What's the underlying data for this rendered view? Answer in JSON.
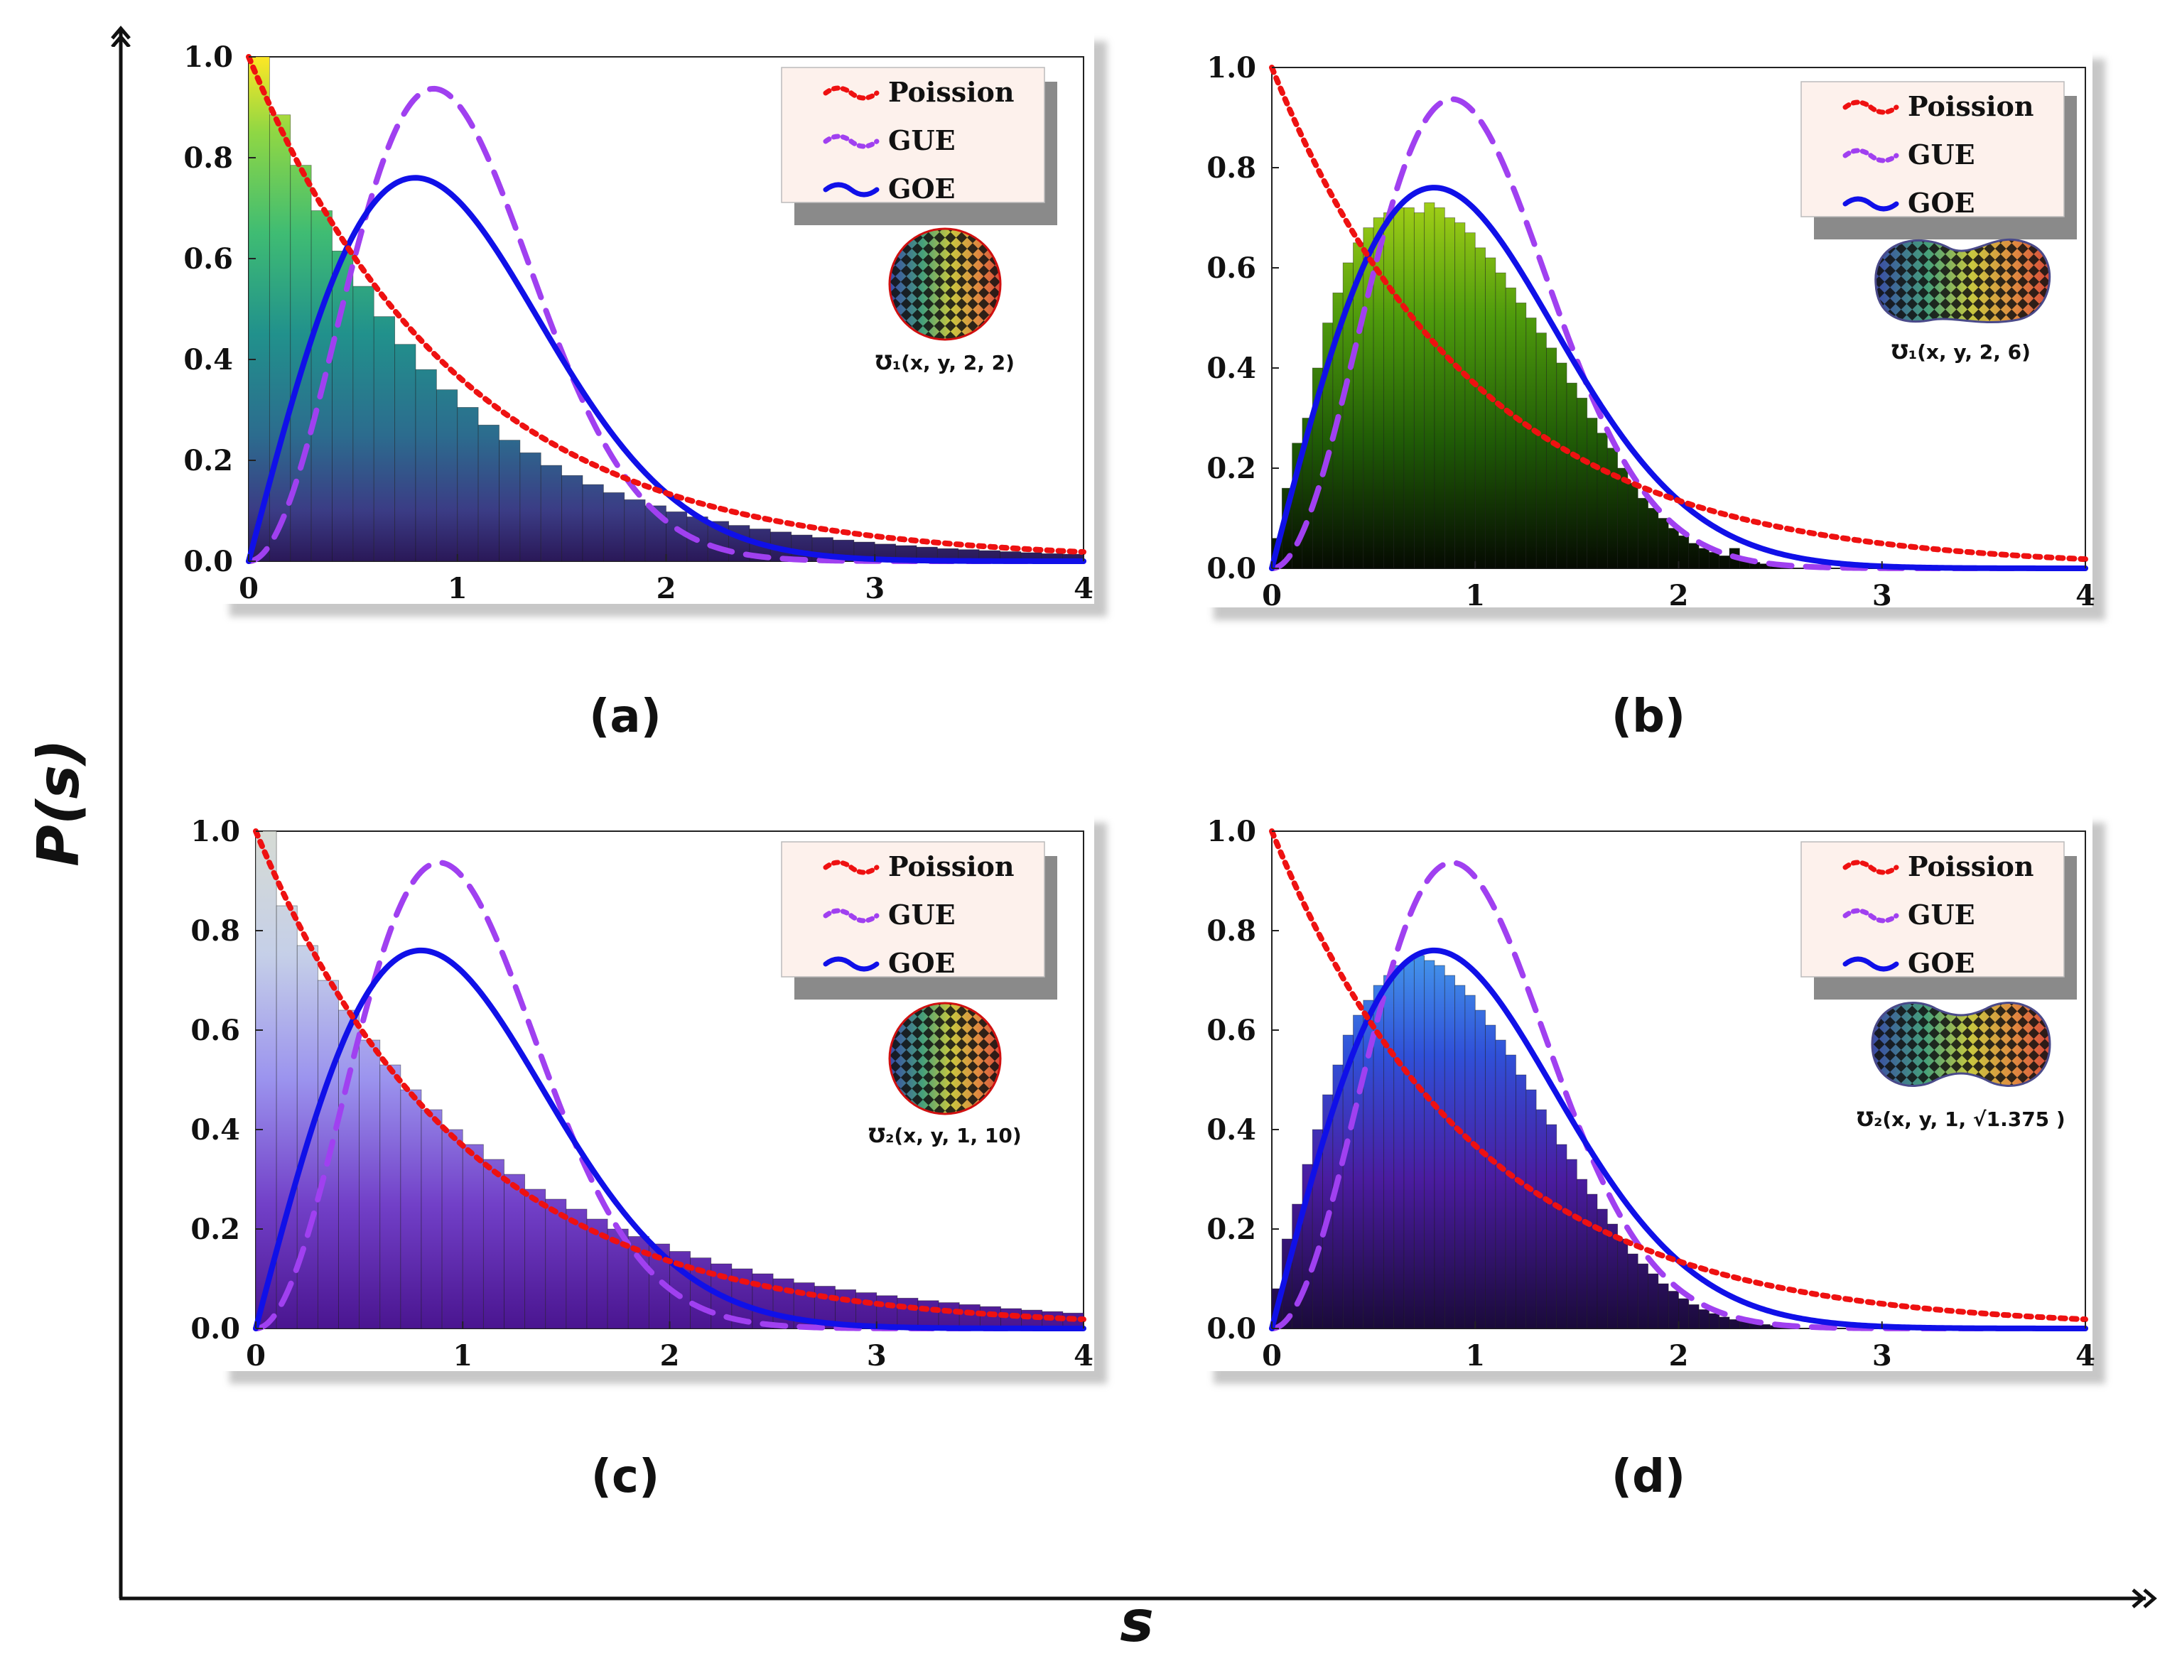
{
  "figure": {
    "ylabel": "P(s)",
    "xlabel": "s",
    "colors": {
      "poisson": "#ee1111",
      "gue": "#a040f0",
      "goe": "#1010e8",
      "legend_bg": "#fdf1ec"
    }
  },
  "chart_data": [
    {
      "type": "bar",
      "panel": "(a)",
      "inset_label": "℧₁(x, y, 2, 2)",
      "inset_shape": "circle",
      "colormap": "viridis",
      "xlim": [
        0,
        4
      ],
      "ylim": [
        0,
        1.0
      ],
      "xticks": [
        "0",
        "1",
        "2",
        "3",
        "4"
      ],
      "yticks": [
        "0.0",
        "0.2",
        "0.4",
        "0.6",
        "0.8",
        "1.0"
      ],
      "legend": [
        "Poission",
        "GUE",
        "GOE"
      ],
      "bin_width": 0.1,
      "histogram": [
        1.0,
        0.885,
        0.785,
        0.695,
        0.615,
        0.545,
        0.485,
        0.43,
        0.38,
        0.34,
        0.305,
        0.27,
        0.24,
        0.215,
        0.19,
        0.17,
        0.152,
        0.136,
        0.122,
        0.11,
        0.098,
        0.088,
        0.079,
        0.071,
        0.064,
        0.058,
        0.052,
        0.047,
        0.042,
        0.038,
        0.034,
        0.031,
        0.028,
        0.025,
        0.023,
        0.021,
        0.019,
        0.017,
        0.015,
        0.014
      ]
    },
    {
      "type": "bar",
      "panel": "(b)",
      "inset_label": "℧₁(x, y, 2, 6)",
      "inset_shape": "bean",
      "colormap": "greenyellow",
      "xlim": [
        0,
        4
      ],
      "ylim": [
        0,
        1.0
      ],
      "xticks": [
        "0",
        "1",
        "2",
        "3",
        "4"
      ],
      "yticks": [
        "0.0",
        "0.2",
        "0.4",
        "0.6",
        "0.8",
        "1.0"
      ],
      "legend": [
        "Poission",
        "GUE",
        "GOE"
      ],
      "bin_width": 0.05,
      "histogram": [
        0.06,
        0.16,
        0.25,
        0.3,
        0.4,
        0.49,
        0.55,
        0.61,
        0.65,
        0.68,
        0.7,
        0.71,
        0.72,
        0.72,
        0.71,
        0.73,
        0.72,
        0.7,
        0.69,
        0.67,
        0.64,
        0.62,
        0.59,
        0.56,
        0.53,
        0.5,
        0.47,
        0.44,
        0.41,
        0.37,
        0.34,
        0.3,
        0.27,
        0.24,
        0.2,
        0.17,
        0.14,
        0.12,
        0.1,
        0.08,
        0.065,
        0.05,
        0.04,
        0.032,
        0.025,
        0.04,
        0.015,
        0.012,
        0.009,
        0.007
      ]
    },
    {
      "type": "bar",
      "panel": "(c)",
      "inset_label": "℧₂(x, y, 1, 10)",
      "inset_shape": "circle",
      "colormap": "lavender",
      "xlim": [
        0,
        4
      ],
      "ylim": [
        0,
        1.0
      ],
      "xticks": [
        "0",
        "1",
        "2",
        "3",
        "4"
      ],
      "yticks": [
        "0.0",
        "0.2",
        "0.4",
        "0.6",
        "0.8",
        "1.0"
      ],
      "legend": [
        "Poission",
        "GUE",
        "GOE"
      ],
      "bin_width": 0.1,
      "histogram": [
        1.0,
        0.85,
        0.77,
        0.7,
        0.64,
        0.58,
        0.53,
        0.48,
        0.44,
        0.4,
        0.37,
        0.34,
        0.31,
        0.28,
        0.26,
        0.24,
        0.22,
        0.2,
        0.185,
        0.17,
        0.155,
        0.142,
        0.13,
        0.12,
        0.11,
        0.1,
        0.092,
        0.085,
        0.078,
        0.072,
        0.066,
        0.061,
        0.056,
        0.052,
        0.048,
        0.044,
        0.04,
        0.037,
        0.034,
        0.031
      ]
    },
    {
      "type": "bar",
      "panel": "(d)",
      "inset_label": "℧₂(x, y, 1, √1.375 )",
      "inset_shape": "peanut",
      "colormap": "skyblue",
      "xlim": [
        0,
        4
      ],
      "ylim": [
        0,
        1.0
      ],
      "xticks": [
        "0",
        "1",
        "2",
        "3",
        "4"
      ],
      "yticks": [
        "0.0",
        "0.2",
        "0.4",
        "0.6",
        "0.8",
        "1.0"
      ],
      "legend": [
        "Poission",
        "GUE",
        "GOE"
      ],
      "bin_width": 0.05,
      "histogram": [
        0.08,
        0.18,
        0.25,
        0.33,
        0.4,
        0.47,
        0.53,
        0.59,
        0.63,
        0.66,
        0.69,
        0.71,
        0.73,
        0.74,
        0.75,
        0.74,
        0.73,
        0.71,
        0.69,
        0.67,
        0.64,
        0.61,
        0.58,
        0.55,
        0.51,
        0.48,
        0.44,
        0.41,
        0.37,
        0.34,
        0.3,
        0.27,
        0.24,
        0.21,
        0.18,
        0.15,
        0.13,
        0.11,
        0.09,
        0.075,
        0.06,
        0.048,
        0.038,
        0.03,
        0.023,
        0.018,
        0.014,
        0.011,
        0.008,
        0.006
      ]
    }
  ]
}
